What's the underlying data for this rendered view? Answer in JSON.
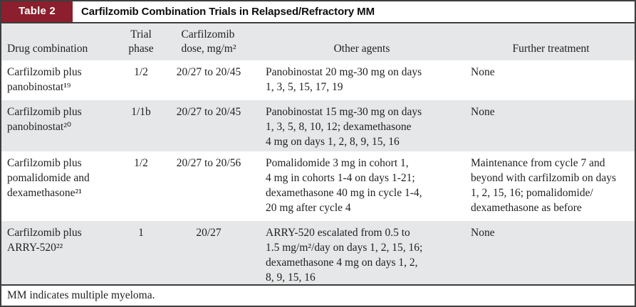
{
  "header": {
    "label": "Table 2",
    "title": "Carfilzomib Combination Trials in Relapsed/Refractory MM"
  },
  "columns": [
    "Drug combination",
    "Trial\nphase",
    "Carfilzomib\ndose, mg/m²",
    "Other agents",
    "Further treatment"
  ],
  "rows": [
    {
      "drug_combination": "Carfilzomib plus\npanobinostat¹⁹",
      "trial_phase": "1/2",
      "dose": "20/27 to 20/45",
      "other_agents": "Panobinostat 20 mg-30 mg on days\n1, 3, 5, 15, 17, 19",
      "further_treatment": "None"
    },
    {
      "drug_combination": "Carfilzomib plus\npanobinostat²⁰",
      "trial_phase": "1/1b",
      "dose": "20/27 to 20/45",
      "other_agents": "Panobinostat 15 mg-30 mg on days\n1, 3, 5, 8, 10, 12; dexamethasone\n4 mg on days 1, 2, 8, 9, 15, 16",
      "further_treatment": "None"
    },
    {
      "drug_combination": "Carfilzomib plus\npomalidomide and\ndexamethasone²¹",
      "trial_phase": "1/2",
      "dose": "20/27 to 20/56",
      "other_agents": "Pomalidomide 3 mg in cohort 1,\n4 mg in cohorts 1-4 on days 1-21;\ndexamethasone 40 mg in cycle 1-4,\n20 mg after cycle 4",
      "further_treatment": "Maintenance from cycle 7 and\nbeyond with carfilzomib on days\n1, 2, 15, 16; pomalidomide/\ndexamethasone as before"
    },
    {
      "drug_combination": "Carfilzomib plus\nARRY-520²²",
      "trial_phase": "1",
      "dose": "20/27",
      "other_agents": "ARRY-520 escalated from 0.5 to\n1.5 mg/m²/day on days 1, 2, 15, 16;\ndexamethasone 4 mg on days 1, 2,\n8, 9, 15, 16",
      "further_treatment": "None"
    }
  ],
  "footnote": "MM indicates multiple myeloma.",
  "colors": {
    "accent_maroon": "#8c1e2d",
    "row_alt_gray": "#e6e7e8",
    "border_dark": "#3d3d3d"
  }
}
